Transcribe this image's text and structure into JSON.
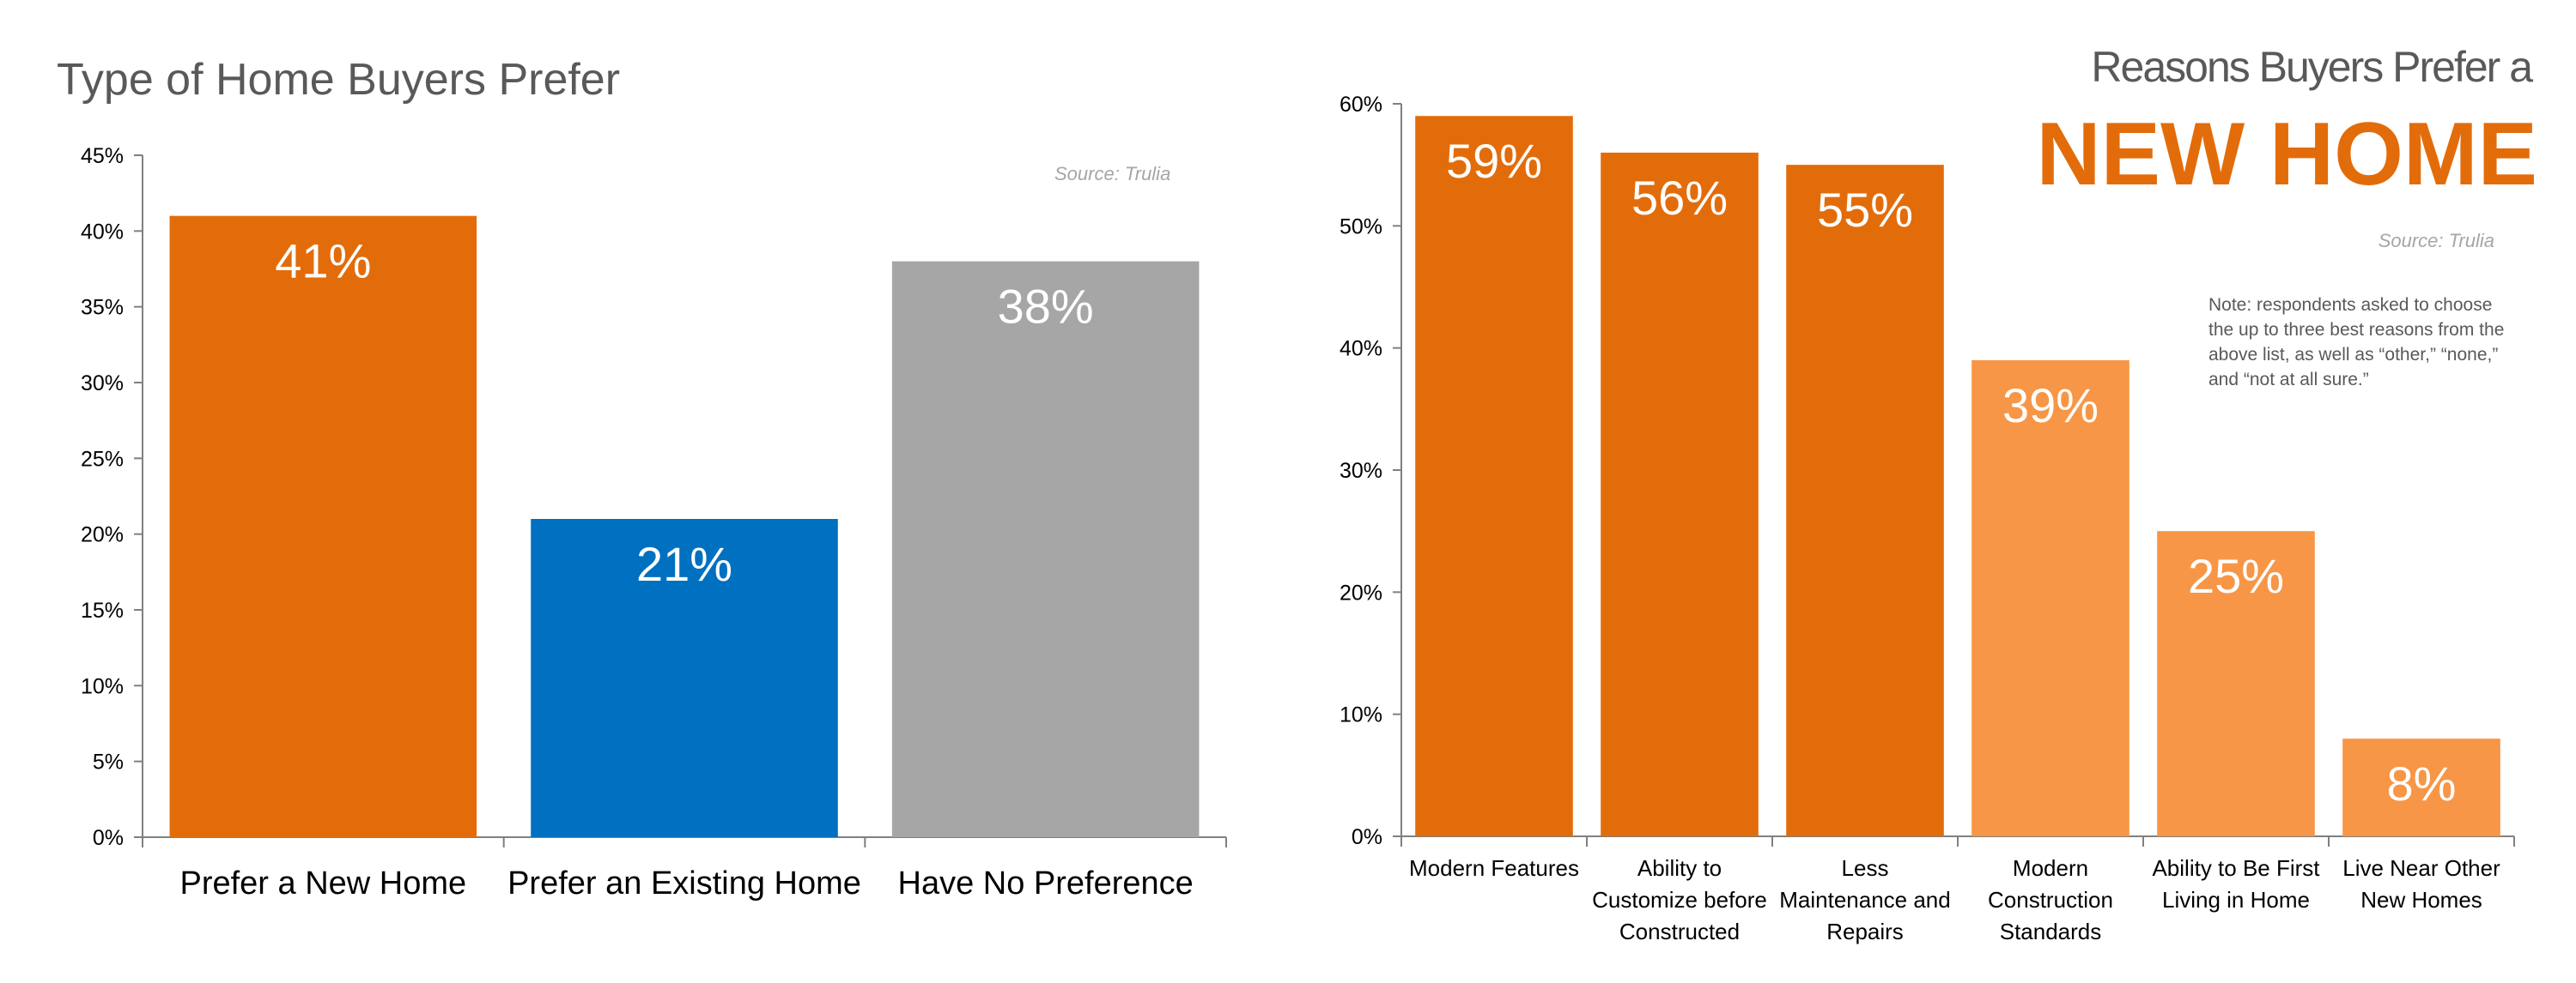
{
  "colors": {
    "orange": "#E36C0A",
    "light_orange": "#F79646",
    "blue": "#0070C0",
    "gray": "#A6A6A6",
    "axis": "#808080",
    "title_gray": "#595959",
    "source_gray": "#A6A6A6"
  },
  "chart_data": [
    {
      "type": "bar",
      "title": "Type of Home Buyers Prefer",
      "source": "Source: Trulia",
      "categories": [
        "Prefer a New Home",
        "Prefer an Existing Home",
        "Have No Preference"
      ],
      "values": [
        41,
        21,
        38
      ],
      "data_labels": [
        "41%",
        "21%",
        "38%"
      ],
      "bar_colors": [
        "#E36C0A",
        "#0070C0",
        "#A6A6A6"
      ],
      "ylim": [
        0,
        45
      ],
      "yticks": [
        0,
        5,
        10,
        15,
        20,
        25,
        30,
        35,
        40,
        45
      ],
      "ytick_labels": [
        "0%",
        "5%",
        "10%",
        "15%",
        "20%",
        "25%",
        "30%",
        "35%",
        "40%",
        "45%"
      ],
      "grid": false,
      "legend": "none"
    },
    {
      "type": "bar",
      "title_line1": "Reasons Buyers Prefer a",
      "title_line2": "NEW HOME",
      "source": "Source: Trulia",
      "note": [
        "Note: respondents asked to choose",
        "the up to three best reasons from the",
        "above list, as well as “other,” “none,”",
        "and “not at all sure.”"
      ],
      "categories": [
        [
          "Modern Features"
        ],
        [
          "Ability to",
          "Customize before",
          "Constructed"
        ],
        [
          "Less",
          "Maintenance and",
          "Repairs"
        ],
        [
          "Modern",
          "Construction",
          "Standards"
        ],
        [
          "Ability to Be First",
          "Living in Home"
        ],
        [
          "Live Near Other",
          "New Homes"
        ]
      ],
      "values": [
        59,
        56,
        55,
        39,
        25,
        8
      ],
      "data_labels": [
        "59%",
        "56%",
        "55%",
        "39%",
        "25%",
        "8%"
      ],
      "bar_colors": [
        "#E36C0A",
        "#E36C0A",
        "#E36C0A",
        "#F79646",
        "#F79646",
        "#F79646"
      ],
      "ylim": [
        0,
        60
      ],
      "yticks": [
        0,
        10,
        20,
        30,
        40,
        50,
        60
      ],
      "ytick_labels": [
        "0%",
        "10%",
        "20%",
        "30%",
        "40%",
        "50%",
        "60%"
      ],
      "grid": false,
      "legend": "none"
    }
  ]
}
